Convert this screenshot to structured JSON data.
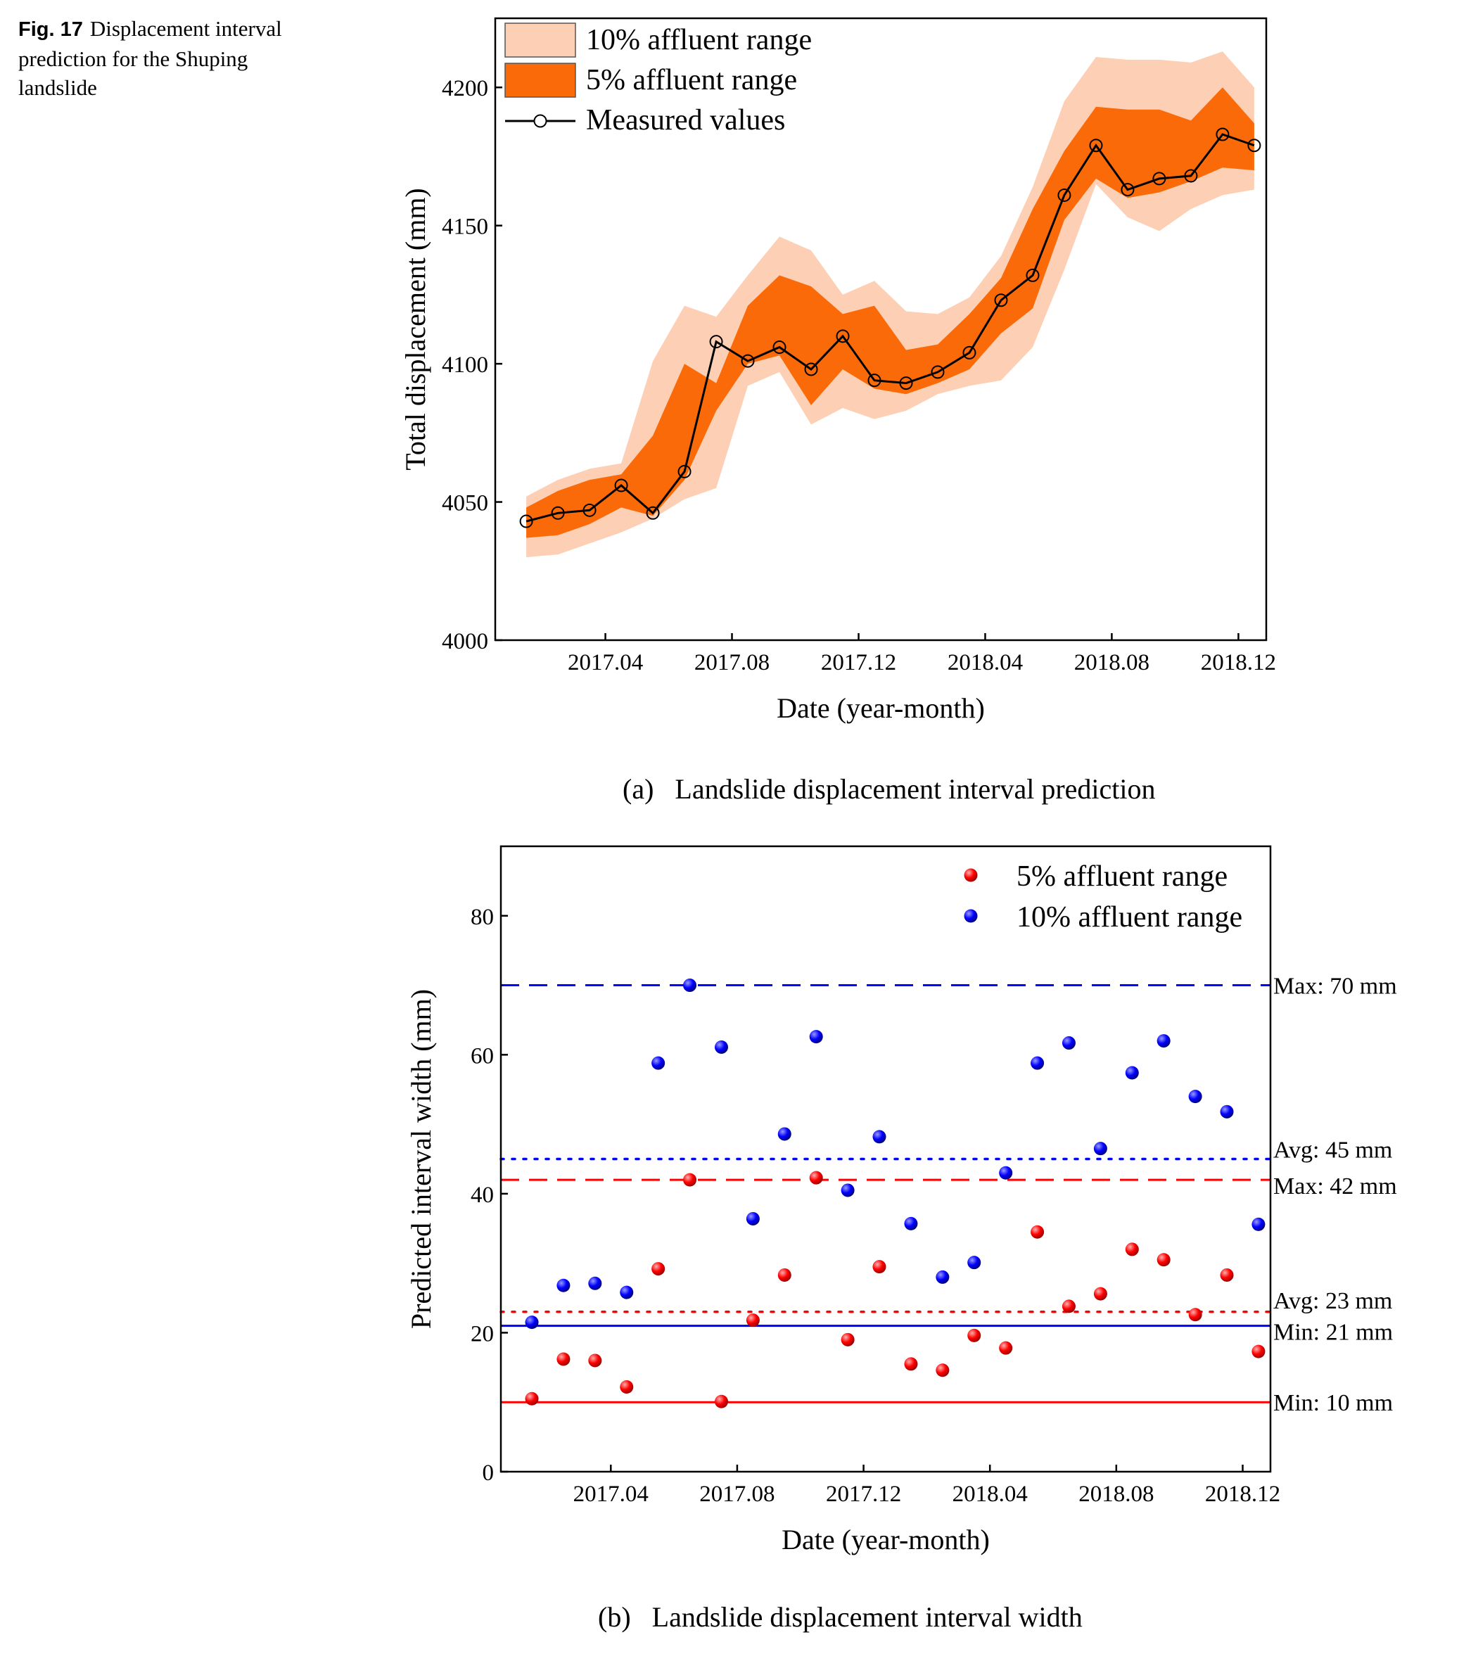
{
  "figure": {
    "number": "Fig. 17",
    "caption": "Displacement interval prediction for the Shuping landslide"
  },
  "colors": {
    "range10": "#fdd0b5",
    "range5": "#fb6a08",
    "red": "#ff0000",
    "blue": "#0000ff"
  },
  "chart_data": [
    {
      "type": "area",
      "panel": "(a)",
      "caption": "Landslide displacement interval prediction",
      "xlabel": "Date (year-month)",
      "ylabel": "Total displacement (mm)",
      "ylim": [
        4000,
        4225
      ],
      "yticks": [
        4000,
        4050,
        4100,
        4150,
        4200
      ],
      "xlim": [
        2016.96,
        2018.99
      ],
      "xticks": [
        {
          "label": "2017.04",
          "x": 2017.25
        },
        {
          "label": "2017.08",
          "x": 2017.5833
        },
        {
          "label": "2017.12",
          "x": 2017.9167
        },
        {
          "label": "2018.04",
          "x": 2018.25
        },
        {
          "label": "2018.08",
          "x": 2018.5833
        },
        {
          "label": "2018.12",
          "x": 2018.9167
        }
      ],
      "legend": {
        "position": "top-left",
        "entries": [
          "10% affluent range",
          "5% affluent range",
          "Measured values"
        ]
      },
      "x": [
        2017.0417,
        2017.125,
        2017.2083,
        2017.2917,
        2017.375,
        2017.4583,
        2017.5417,
        2017.625,
        2017.7083,
        2017.7917,
        2017.875,
        2017.9583,
        2018.0417,
        2018.125,
        2018.2083,
        2018.2917,
        2018.375,
        2018.4583,
        2018.5417,
        2018.625,
        2018.7083,
        2018.7917,
        2018.875,
        2018.9583
      ],
      "series": [
        {
          "name": "Measured values",
          "values": [
            4043,
            4046,
            4047,
            4056,
            4046,
            4061,
            4108,
            4101,
            4106,
            4098,
            4110,
            4094,
            4093,
            4097,
            4104,
            4123,
            4132,
            4161,
            4179,
            4163,
            4167,
            4168,
            4183,
            4179
          ]
        },
        {
          "name": "5% affluent range upper",
          "values": [
            4048,
            4054,
            4058,
            4060,
            4074,
            4100,
            4093,
            4121,
            4132,
            4128,
            4118,
            4121,
            4105,
            4107,
            4118,
            4131,
            4156,
            4177,
            4193,
            4192,
            4192,
            4188,
            4200,
            4187
          ]
        },
        {
          "name": "5% affluent range lower",
          "values": [
            4037,
            4038,
            4042,
            4048,
            4045,
            4058,
            4083,
            4100,
            4103,
            4085,
            4098,
            4091,
            4089,
            4093,
            4098,
            4111,
            4120,
            4152,
            4167,
            4160,
            4162,
            4166,
            4171,
            4170
          ]
        },
        {
          "name": "10% affluent range upper",
          "values": [
            4052,
            4058,
            4062,
            4064,
            4101,
            4121,
            4117,
            4132,
            4146,
            4141,
            4125,
            4130,
            4119,
            4118,
            4124,
            4139,
            4164,
            4195,
            4211,
            4210,
            4210,
            4209,
            4213,
            4200
          ]
        },
        {
          "name": "10% affluent range lower",
          "values": [
            4030,
            4031,
            4035,
            4039,
            4044,
            4051,
            4055,
            4092,
            4097,
            4078,
            4084,
            4080,
            4083,
            4089,
            4092,
            4094,
            4106,
            4134,
            4165,
            4153,
            4148,
            4156,
            4161,
            4163
          ]
        }
      ]
    },
    {
      "type": "scatter",
      "panel": "(b)",
      "caption": "Landslide displacement interval width",
      "xlabel": "Date (year-month)",
      "ylabel": "Predicted interval width (mm)",
      "ylim": [
        0,
        90
      ],
      "yticks": [
        0,
        20,
        40,
        60,
        80
      ],
      "xlim": [
        2016.96,
        2018.99
      ],
      "xticks": [
        {
          "label": "2017.04",
          "x": 2017.25
        },
        {
          "label": "2017.08",
          "x": 2017.5833
        },
        {
          "label": "2017.12",
          "x": 2017.9167
        },
        {
          "label": "2018.04",
          "x": 2018.25
        },
        {
          "label": "2018.08",
          "x": 2018.5833
        },
        {
          "label": "2018.12",
          "x": 2018.9167
        }
      ],
      "legend": {
        "position": "top-right",
        "entries": [
          "5% affluent range",
          "10% affluent range"
        ]
      },
      "x": [
        2017.0417,
        2017.125,
        2017.2083,
        2017.2917,
        2017.375,
        2017.4583,
        2017.5417,
        2017.625,
        2017.7083,
        2017.7917,
        2017.875,
        2017.9583,
        2018.0417,
        2018.125,
        2018.2083,
        2018.2917,
        2018.375,
        2018.4583,
        2018.5417,
        2018.625,
        2018.7083,
        2018.7917,
        2018.875,
        2018.9583
      ],
      "series": [
        {
          "name": "5% affluent range",
          "values": [
            10.5,
            16.2,
            16,
            12.2,
            29.2,
            42,
            10.1,
            21.8,
            28.3,
            42.3,
            19,
            29.5,
            15.5,
            14.6,
            19.6,
            17.8,
            34.5,
            23.8,
            25.6,
            32,
            30.5,
            22.6,
            28.3,
            17.3
          ]
        },
        {
          "name": "10% affluent range",
          "values": [
            21.5,
            26.8,
            27.1,
            25.8,
            58.8,
            70,
            61.1,
            36.4,
            48.6,
            62.6,
            40.5,
            48.2,
            35.7,
            28,
            30.1,
            43,
            58.8,
            61.7,
            46.5,
            57.4,
            62,
            54,
            51.8,
            35.6
          ]
        }
      ],
      "reference_lines": [
        {
          "label": "Max: 70 mm",
          "value": 70,
          "color": "blue",
          "style": "dashed"
        },
        {
          "label": "Avg: 45 mm",
          "value": 45,
          "color": "blue",
          "style": "dotted"
        },
        {
          "label": "Max: 42 mm",
          "value": 42,
          "color": "red",
          "style": "dashed"
        },
        {
          "label": "Avg: 23 mm",
          "value": 23,
          "color": "red",
          "style": "dotted"
        },
        {
          "label": "Min: 21 mm",
          "value": 21,
          "color": "blue",
          "style": "solid"
        },
        {
          "label": "Min: 10 mm",
          "value": 10,
          "color": "red",
          "style": "solid"
        }
      ]
    }
  ]
}
